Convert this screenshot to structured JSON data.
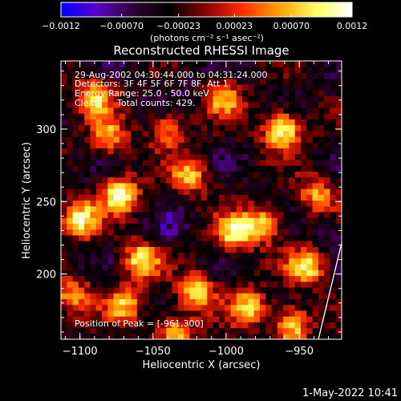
{
  "chart_data": {
    "type": "heatmap",
    "title": "Reconstructed RHESSI Image",
    "xlabel": "Heliocentric X (arcsec)",
    "ylabel": "Heliocentric Y (arcsec)",
    "xlim": [
      -1113,
      -921
    ],
    "ylim": [
      155,
      347
    ],
    "x_ticks": [
      -1100,
      -1050,
      -1000,
      -950
    ],
    "x_tick_labels": [
      "−1100",
      "−1050",
      "−1000",
      "−950"
    ],
    "y_ticks": [
      200,
      250,
      300
    ],
    "y_tick_labels": [
      "200",
      "250",
      "300"
    ],
    "colorbar": {
      "min": -0.0012,
      "max": 0.0012,
      "ticks": [
        -0.0012,
        -0.0007,
        -0.00023,
        0.00023,
        0.0007,
        0.0012
      ],
      "tick_labels": [
        "−0.0012",
        "−0.00070",
        "−0.00023",
        "0.00023",
        "0.00070",
        "0.0012"
      ],
      "unit_label": "(photons cm⁻² s⁻¹ asec⁻²)",
      "colors": [
        "#0000ff",
        "#5a00c8",
        "#300030",
        "#000000",
        "#8c0000",
        "#ff3000",
        "#ffa000",
        "#ffff60",
        "#ffffff"
      ]
    },
    "annotations": [
      "29-Aug-2002 04:30:44.000 to 04:31:24.000",
      "Detectors: 3F 4F 5F 6F 7F 8F, Att 1",
      "Energy Range: 25.0 - 50.0 keV",
      "Clean",
      "Total counts: 429."
    ],
    "peak_label": "Position of Peak = [-961,300]",
    "grid": false,
    "hotspots": [
      {
        "x": -962,
        "y": 300,
        "v": 0.0012
      },
      {
        "x": -1072,
        "y": 255,
        "v": 0.00105
      },
      {
        "x": -1100,
        "y": 238,
        "v": 0.001
      },
      {
        "x": -1090,
        "y": 322,
        "v": 0.0008
      },
      {
        "x": -1025,
        "y": 268,
        "v": 0.0007
      },
      {
        "x": -1002,
        "y": 322,
        "v": 0.00065
      },
      {
        "x": -995,
        "y": 228,
        "v": 0.0009
      },
      {
        "x": -1058,
        "y": 210,
        "v": 0.0009
      },
      {
        "x": -1020,
        "y": 188,
        "v": 0.0008
      },
      {
        "x": -985,
        "y": 178,
        "v": 0.00075
      },
      {
        "x": -975,
        "y": 235,
        "v": 0.0008
      },
      {
        "x": -945,
        "y": 205,
        "v": 0.0009
      },
      {
        "x": -938,
        "y": 255,
        "v": 0.0006
      },
      {
        "x": -1105,
        "y": 185,
        "v": 0.0006
      },
      {
        "x": -1080,
        "y": 295,
        "v": 0.0006
      },
      {
        "x": -1040,
        "y": 300,
        "v": 0.0005
      },
      {
        "x": -1035,
        "y": 160,
        "v": 0.0007
      },
      {
        "x": -1070,
        "y": 180,
        "v": 0.0007
      },
      {
        "x": -955,
        "y": 165,
        "v": 0.0009
      },
      {
        "x": -1040,
        "y": 230,
        "v": -0.0006
      },
      {
        "x": -1030,
        "y": 335,
        "v": -0.0005
      },
      {
        "x": -1090,
        "y": 275,
        "v": -0.0004
      },
      {
        "x": -930,
        "y": 230,
        "v": -0.0005
      },
      {
        "x": -1075,
        "y": 340,
        "v": -0.0004
      }
    ]
  },
  "footer": {
    "timestamp": "1-May-2022 10:41"
  },
  "colors": {
    "background": "#000000",
    "foreground": "#ffffff"
  }
}
